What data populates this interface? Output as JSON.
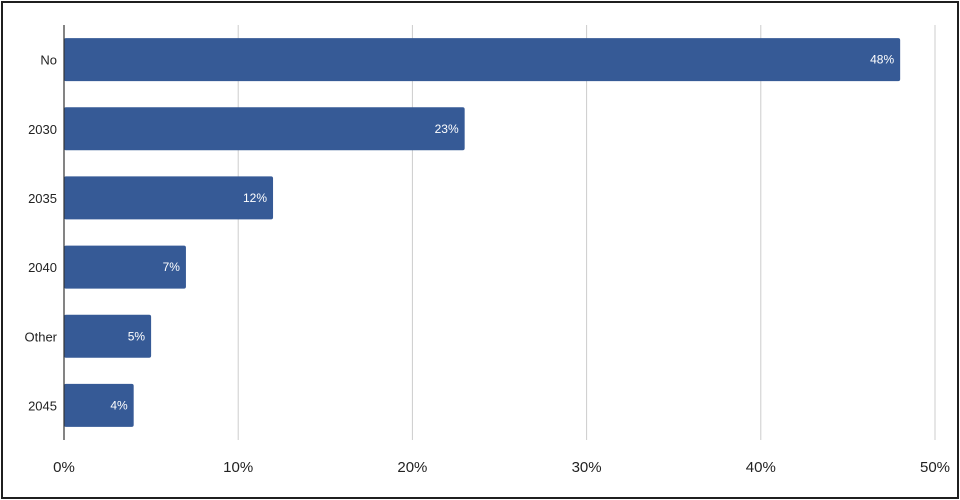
{
  "chart_data": {
    "type": "bar",
    "orientation": "horizontal",
    "categories": [
      "No",
      "2030",
      "2035",
      "2040",
      "Other",
      "2045"
    ],
    "values": [
      48,
      23,
      12,
      7,
      5,
      4
    ],
    "value_labels": [
      "48%",
      "23%",
      "12%",
      "7%",
      "5%",
      "4%"
    ],
    "xlim": [
      0,
      50
    ],
    "x_ticks": [
      0,
      10,
      20,
      30,
      40,
      50
    ],
    "x_tick_labels": [
      "0%",
      "10%",
      "20%",
      "30%",
      "40%",
      "50%"
    ],
    "grid": "vertical",
    "legend": "none",
    "colors": {
      "bar": "#365a96",
      "grid": "#cccccc",
      "axis": "#333333",
      "bar_label": "#ffffff"
    }
  }
}
